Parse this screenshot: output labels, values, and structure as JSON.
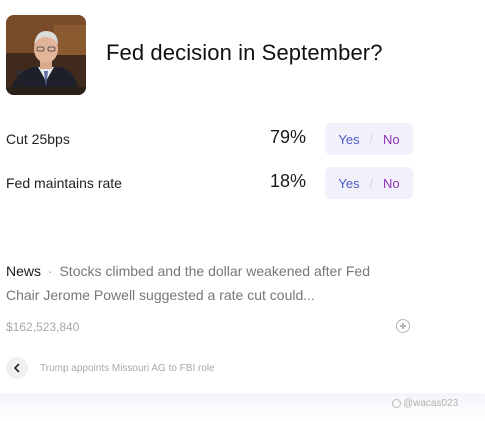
{
  "market": {
    "title": "Fed decision in September?",
    "thumbnail_icon": "fed-chair-photo"
  },
  "outcomes": [
    {
      "label": "Cut 25bps",
      "percent": "79%",
      "yes_label": "Yes",
      "separator": "/",
      "no_label": "No"
    },
    {
      "label": "Fed maintains rate",
      "percent": "18%",
      "yes_label": "Yes",
      "separator": "/",
      "no_label": "No"
    }
  ],
  "news": {
    "tag": "News",
    "separator": "·",
    "text": "Stocks climbed and the dollar weakened after Fed Chair Jerome Powell suggested a rate cut could..."
  },
  "footer": {
    "volume": "$162,523,840",
    "add_icon": "plus-circle-icon"
  },
  "ticker": {
    "back_icon": "chevron-left-icon",
    "text": "Trump appoints Missouri AG to FBI role"
  },
  "watermark": {
    "text": "@wacas023"
  },
  "colors": {
    "yes": "#4d5cc8",
    "no": "#8e33b5",
    "button_bg": "#f1f0fb"
  }
}
